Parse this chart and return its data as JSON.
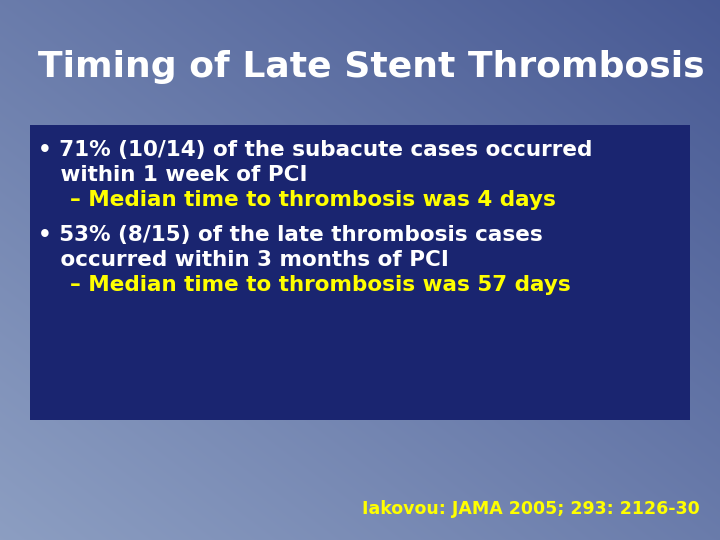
{
  "title": "Timing of Late Stent Thrombosis",
  "title_color": "#FFFFFF",
  "title_fontsize": 26,
  "box_color": "#1a2570",
  "bullet_text_color": "#FFFFFF",
  "dash_color": "#FFFF00",
  "citation_color": "#FFFF00",
  "citation_text": "Iakovou: JAMA 2005; 293: 2126-30",
  "bullet1_line1": "• 71% (10/14) of the subacute cases occurred",
  "bullet1_line2": "   within 1 week of PCI",
  "bullet1_sub": "  – Median time to thrombosis was 4 days",
  "bullet2_line1": "• 53% (8/15) of the late thrombosis cases",
  "bullet2_line2": "   occurred within 3 months of PCI",
  "bullet2_sub": "  – Median time to thrombosis was 57 days",
  "text_fontsize": 15.5,
  "sub_fontsize": 15.5,
  "citation_fontsize": 12.5
}
